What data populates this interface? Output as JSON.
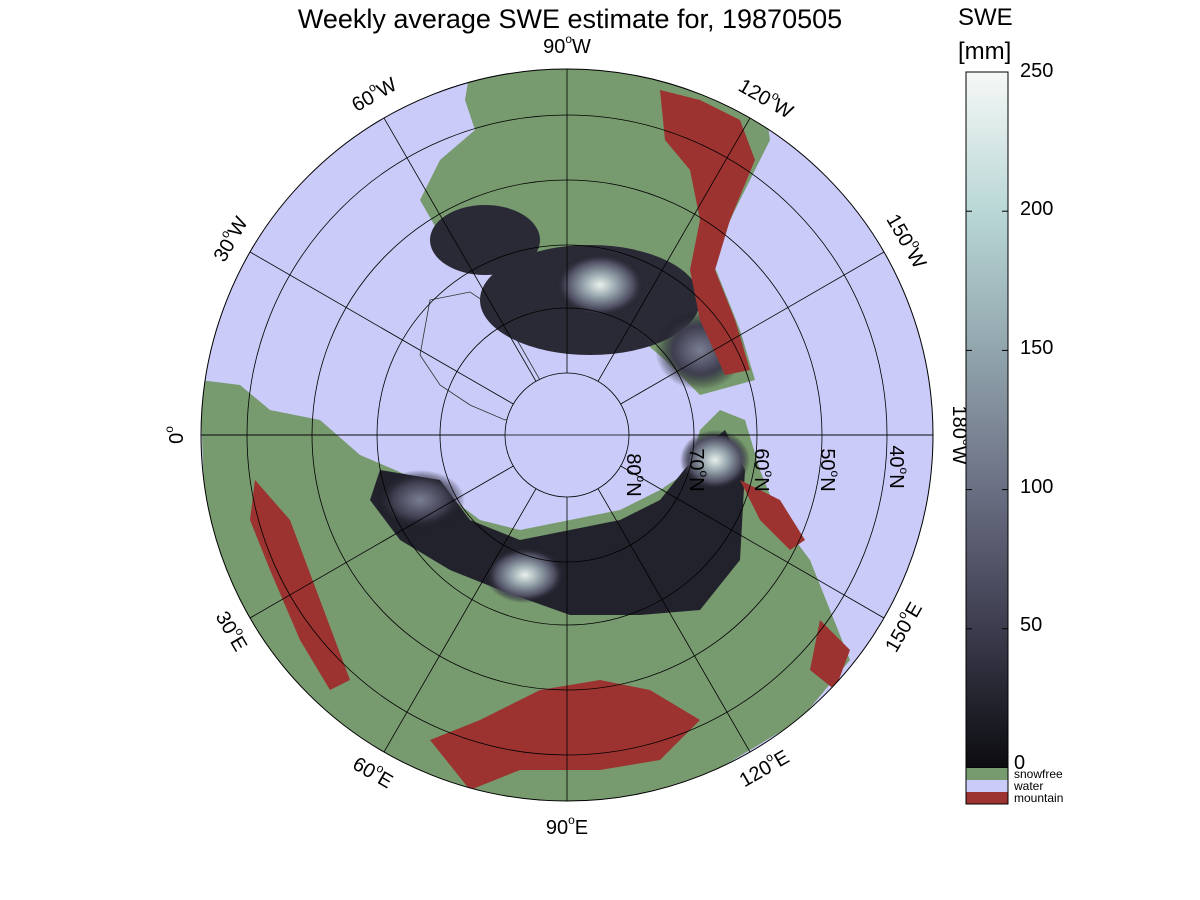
{
  "title": "Weekly average SWE estimate for, 19870505",
  "colorbar": {
    "title_line1": "SWE",
    "title_line2": "[mm]",
    "ticks": [
      "250",
      "200",
      "150",
      "100",
      "50",
      "0"
    ],
    "range": [
      0,
      250
    ],
    "colors": [
      "#0c0c10",
      "#3c3c4e",
      "#6b6f83",
      "#91a5ad",
      "#b9d7d6",
      "#f5f8f6"
    ]
  },
  "legend": [
    {
      "label": "snowfree",
      "color": "#789a6f"
    },
    {
      "label": "water",
      "color": "#cacbf8"
    },
    {
      "label": "mountain",
      "color": "#9c3330"
    }
  ],
  "map": {
    "projection": "north polar stereographic",
    "longitude_labels": [
      {
        "deg": "90",
        "dir": "W"
      },
      {
        "deg": "120",
        "dir": "W"
      },
      {
        "deg": "150",
        "dir": "W"
      },
      {
        "deg": "180",
        "dir": "W"
      },
      {
        "deg": "150",
        "dir": "E"
      },
      {
        "deg": "120",
        "dir": "E"
      },
      {
        "deg": "90",
        "dir": "E"
      },
      {
        "deg": "60",
        "dir": "E"
      },
      {
        "deg": "30",
        "dir": "E"
      },
      {
        "deg": "0",
        "dir": ""
      },
      {
        "deg": "30",
        "dir": "W"
      },
      {
        "deg": "60",
        "dir": "W"
      }
    ],
    "latitude_labels": [
      {
        "deg": "80",
        "dir": "N"
      },
      {
        "deg": "70",
        "dir": "N"
      },
      {
        "deg": "60",
        "dir": "N"
      },
      {
        "deg": "50",
        "dir": "N"
      },
      {
        "deg": "40",
        "dir": "N"
      }
    ]
  }
}
